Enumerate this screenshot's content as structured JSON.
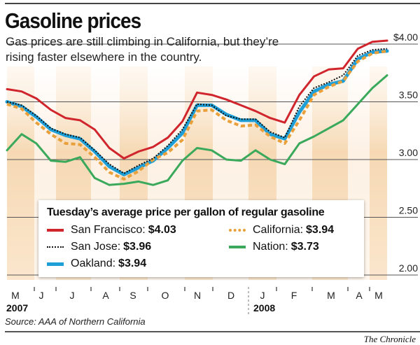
{
  "header": {
    "title": "Gasoline prices",
    "subtitle": "Gas prices are still climbing in California, but they’re rising faster elsewhere in the country."
  },
  "chart_data": {
    "type": "line",
    "title": "Gasoline prices",
    "ylim": [
      2.0,
      4.0
    ],
    "y_ticks": [
      "$4.00",
      "3.50",
      "3.00",
      "2.50",
      "2.00"
    ],
    "y_tick_values": [
      4.0,
      3.5,
      3.0,
      2.5,
      2.0
    ],
    "grid": true,
    "month_labels": [
      "M",
      "J",
      "J",
      "A",
      "S",
      "O",
      "N",
      "D",
      "J",
      "F",
      "M",
      "A",
      "M"
    ],
    "years": [
      "2007",
      "2008"
    ],
    "x": [
      "2007-05-01",
      "2007-05-15",
      "2007-05-29",
      "2007-06-12",
      "2007-06-26",
      "2007-07-10",
      "2007-07-24",
      "2007-08-07",
      "2007-08-21",
      "2007-09-04",
      "2007-09-18",
      "2007-10-02",
      "2007-10-16",
      "2007-10-30",
      "2007-11-13",
      "2007-11-27",
      "2007-12-11",
      "2007-12-25",
      "2008-01-08",
      "2008-01-22",
      "2008-02-05",
      "2008-02-19",
      "2008-03-04",
      "2008-03-18",
      "2008-04-01",
      "2008-04-15",
      "2008-04-29"
    ],
    "series": [
      {
        "name": "San Francisco",
        "color": "#d0252c",
        "style": "solid",
        "values": [
          3.61,
          3.59,
          3.53,
          3.43,
          3.36,
          3.34,
          3.26,
          3.1,
          3.01,
          3.07,
          3.11,
          3.19,
          3.33,
          3.58,
          3.56,
          3.52,
          3.47,
          3.42,
          3.36,
          3.32,
          3.56,
          3.72,
          3.78,
          3.79,
          3.96,
          4.02,
          4.03
        ]
      },
      {
        "name": "San Jose",
        "color": "#111111",
        "style": "dotted",
        "values": [
          3.5,
          3.47,
          3.38,
          3.27,
          3.22,
          3.19,
          3.08,
          2.96,
          2.88,
          2.95,
          3.01,
          3.12,
          3.26,
          3.48,
          3.47,
          3.38,
          3.35,
          3.35,
          3.24,
          3.19,
          3.46,
          3.62,
          3.67,
          3.73,
          3.9,
          3.95,
          3.96
        ]
      },
      {
        "name": "Oakland",
        "color": "#1e9fd8",
        "style": "thick",
        "values": [
          3.5,
          3.46,
          3.37,
          3.26,
          3.21,
          3.18,
          3.07,
          2.94,
          2.87,
          2.93,
          2.99,
          3.1,
          3.23,
          3.47,
          3.47,
          3.39,
          3.34,
          3.34,
          3.22,
          3.18,
          3.41,
          3.59,
          3.65,
          3.68,
          3.87,
          3.93,
          3.94
        ]
      },
      {
        "name": "California",
        "color": "#eaa03a",
        "style": "dashed",
        "values": [
          3.48,
          3.44,
          3.32,
          3.22,
          3.14,
          3.13,
          3.02,
          2.89,
          2.83,
          2.9,
          3.0,
          3.06,
          3.17,
          3.42,
          3.43,
          3.34,
          3.29,
          3.3,
          3.2,
          3.14,
          3.34,
          3.56,
          3.63,
          3.68,
          3.85,
          3.92,
          3.94
        ]
      },
      {
        "name": "Nation",
        "color": "#3aa95b",
        "style": "solid",
        "values": [
          3.08,
          3.22,
          3.14,
          2.99,
          2.98,
          3.02,
          2.84,
          2.78,
          2.79,
          2.81,
          2.78,
          2.82,
          2.99,
          3.1,
          3.08,
          3.0,
          2.99,
          3.08,
          3.0,
          2.96,
          3.14,
          3.2,
          3.27,
          3.34,
          3.48,
          3.62,
          3.73
        ]
      }
    ],
    "legend": {
      "title": "Tuesday’s average price per gallon of regular gasoline",
      "placement": "bottom-center",
      "items": [
        {
          "label": "San Francisco:",
          "value": "$4.03"
        },
        {
          "label": "San Jose:",
          "value": "$3.96"
        },
        {
          "label": "Oakland:",
          "value": "$3.94"
        },
        {
          "label": "California:",
          "value": "$3.94"
        },
        {
          "label": "Nation:",
          "value": "$3.73"
        }
      ]
    }
  },
  "footer": {
    "source": "Source: AAA of Northern California",
    "credit": "The Chronicle"
  }
}
